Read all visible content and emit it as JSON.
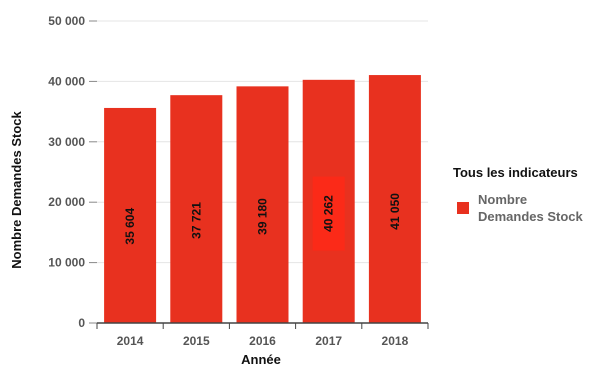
{
  "colors": {
    "bar": "#e8311f",
    "bar_highlight": "#fb2a18",
    "axis": "#444444",
    "grid": "#e4e4e4"
  },
  "chart_data": {
    "type": "bar",
    "categories": [
      "2014",
      "2015",
      "2016",
      "2017",
      "2018"
    ],
    "values": [
      35604,
      37721,
      39180,
      40262,
      41050
    ],
    "data_labels": [
      "35 604",
      "37 721",
      "39 180",
      "40 262",
      "41 050"
    ],
    "xlabel": "Année",
    "ylabel": "Nombre Demandes Stock",
    "ylim": [
      0,
      50000
    ],
    "yticks": [
      0,
      10000,
      20000,
      30000,
      40000,
      50000
    ],
    "ytick_labels": [
      "0",
      "10 000",
      "20 000",
      "30 000",
      "40 000",
      "50 000"
    ],
    "legend": {
      "title": "Tous les indicateurs",
      "entries": [
        {
          "name_lines": [
            "Nombre",
            "Demandes Stock"
          ]
        }
      ],
      "placement": "right"
    },
    "highlighted_category": "2017",
    "grid": true
  }
}
